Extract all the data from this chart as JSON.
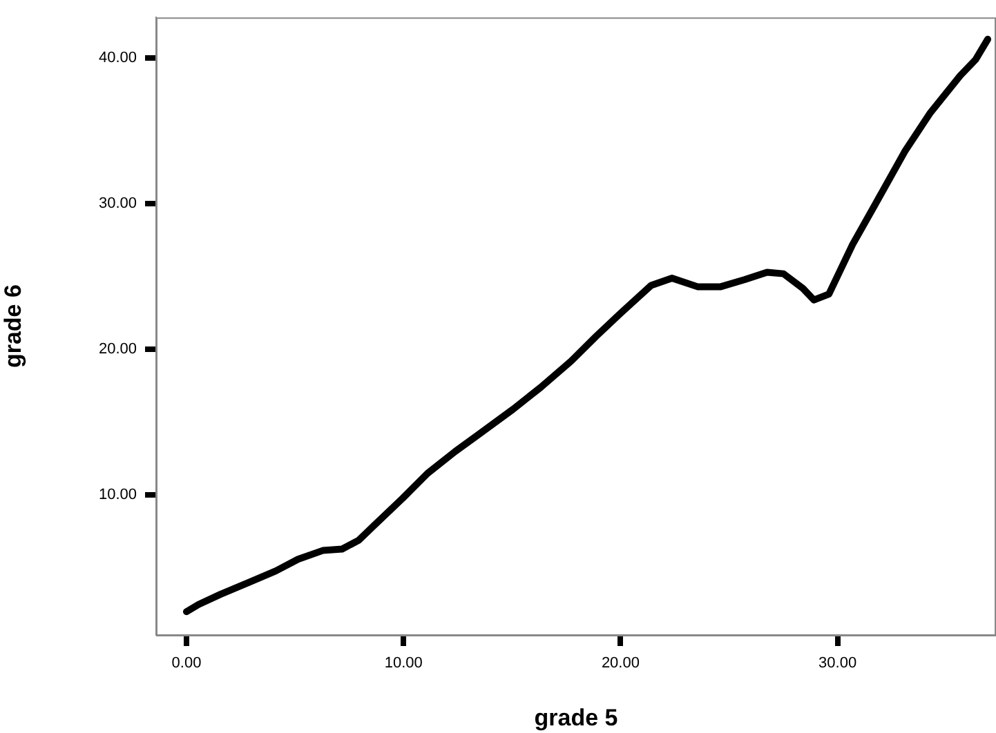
{
  "chart_data": {
    "type": "line",
    "xlabel": "grade 5",
    "ylabel": "grade 6",
    "x": [
      0,
      0.56,
      1.58,
      2.85,
      4.12,
      5.14,
      6.28,
      7.17,
      7.93,
      8.7,
      9.97,
      11.11,
      12.38,
      13.4,
      15.05,
      16.32,
      17.72,
      18.87,
      20.01,
      21.41,
      22.37,
      23.57,
      24.59,
      25.73,
      26.75,
      27.51,
      28.4,
      28.91,
      29.6,
      30.69,
      31.71,
      33.1,
      34.25,
      35.65,
      36.36,
      36.92
    ],
    "series": [
      {
        "color": "#000000",
        "values": [
          2.0,
          2.5,
          3.2,
          4.0,
          4.8,
          5.6,
          6.2,
          6.3,
          6.9,
          8.0,
          9.8,
          11.5,
          13.0,
          14.1,
          15.9,
          17.4,
          19.2,
          20.9,
          22.5,
          24.4,
          24.9,
          24.3,
          24.3,
          24.8,
          25.3,
          25.2,
          24.2,
          23.4,
          23.8,
          27.2,
          29.9,
          33.6,
          36.2,
          38.8,
          39.9,
          41.3
        ]
      }
    ],
    "xlim": [
      -1.4,
      37.3
    ],
    "ylim": [
      0.4,
      42.8
    ],
    "xticks": [
      {
        "value": 0,
        "label": "0.00"
      },
      {
        "value": 10,
        "label": "10.00"
      },
      {
        "value": 20,
        "label": "20.00"
      },
      {
        "value": 30,
        "label": "30.00"
      }
    ],
    "yticks": [
      {
        "value": 10,
        "label": "10.00"
      },
      {
        "value": 20,
        "label": "20.00"
      },
      {
        "value": 30,
        "label": "30.00"
      },
      {
        "value": 40,
        "label": "40.00"
      }
    ],
    "grid": false,
    "legend": false,
    "marker": "none",
    "line_style": "solid"
  }
}
